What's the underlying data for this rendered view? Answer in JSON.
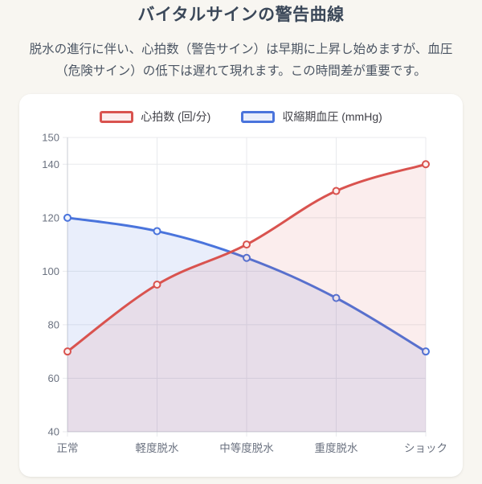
{
  "page": {
    "title": "バイタルサインの警告曲線",
    "description": "脱水の進行に伴い、心拍数（警告サイン）は早期に上昇し始めますが、血圧（危険サイン）の低下は遅れて現れます。この時間差が重要です。"
  },
  "colors": {
    "page_bg": "#f8f6f1",
    "card_bg": "#ffffff",
    "title_text": "#3b4859",
    "body_text": "#4b5563",
    "legend_text": "#3f3f46",
    "tick_text": "#6b7280",
    "grid_line": "#e8eaed",
    "axis_border": "#c9cdd3"
  },
  "chart_data": {
    "type": "line",
    "title": "",
    "categories": [
      "正常",
      "軽度脱水",
      "中等度脱水",
      "重度脱水",
      "ショック"
    ],
    "series": [
      {
        "name": "心拍数 (回/分)",
        "values": [
          70,
          95,
          110,
          130,
          140
        ],
        "color": "#d9534f",
        "fill": "rgba(217, 83, 79, 0.10)",
        "point_fill": "#fcf0ef"
      },
      {
        "name": "収縮期血圧 (mmHg)",
        "values": [
          120,
          115,
          105,
          90,
          70
        ],
        "color": "#4a74dc",
        "fill": "rgba(74, 116, 220, 0.12)",
        "point_fill": "#eef2fc"
      }
    ],
    "xlabel": "",
    "ylabel": "",
    "ylim": [
      40,
      150
    ],
    "yticks": [
      40,
      60,
      80,
      100,
      120,
      140,
      150
    ],
    "legend_position": "top",
    "grid": true,
    "line_tension": 0.18
  }
}
